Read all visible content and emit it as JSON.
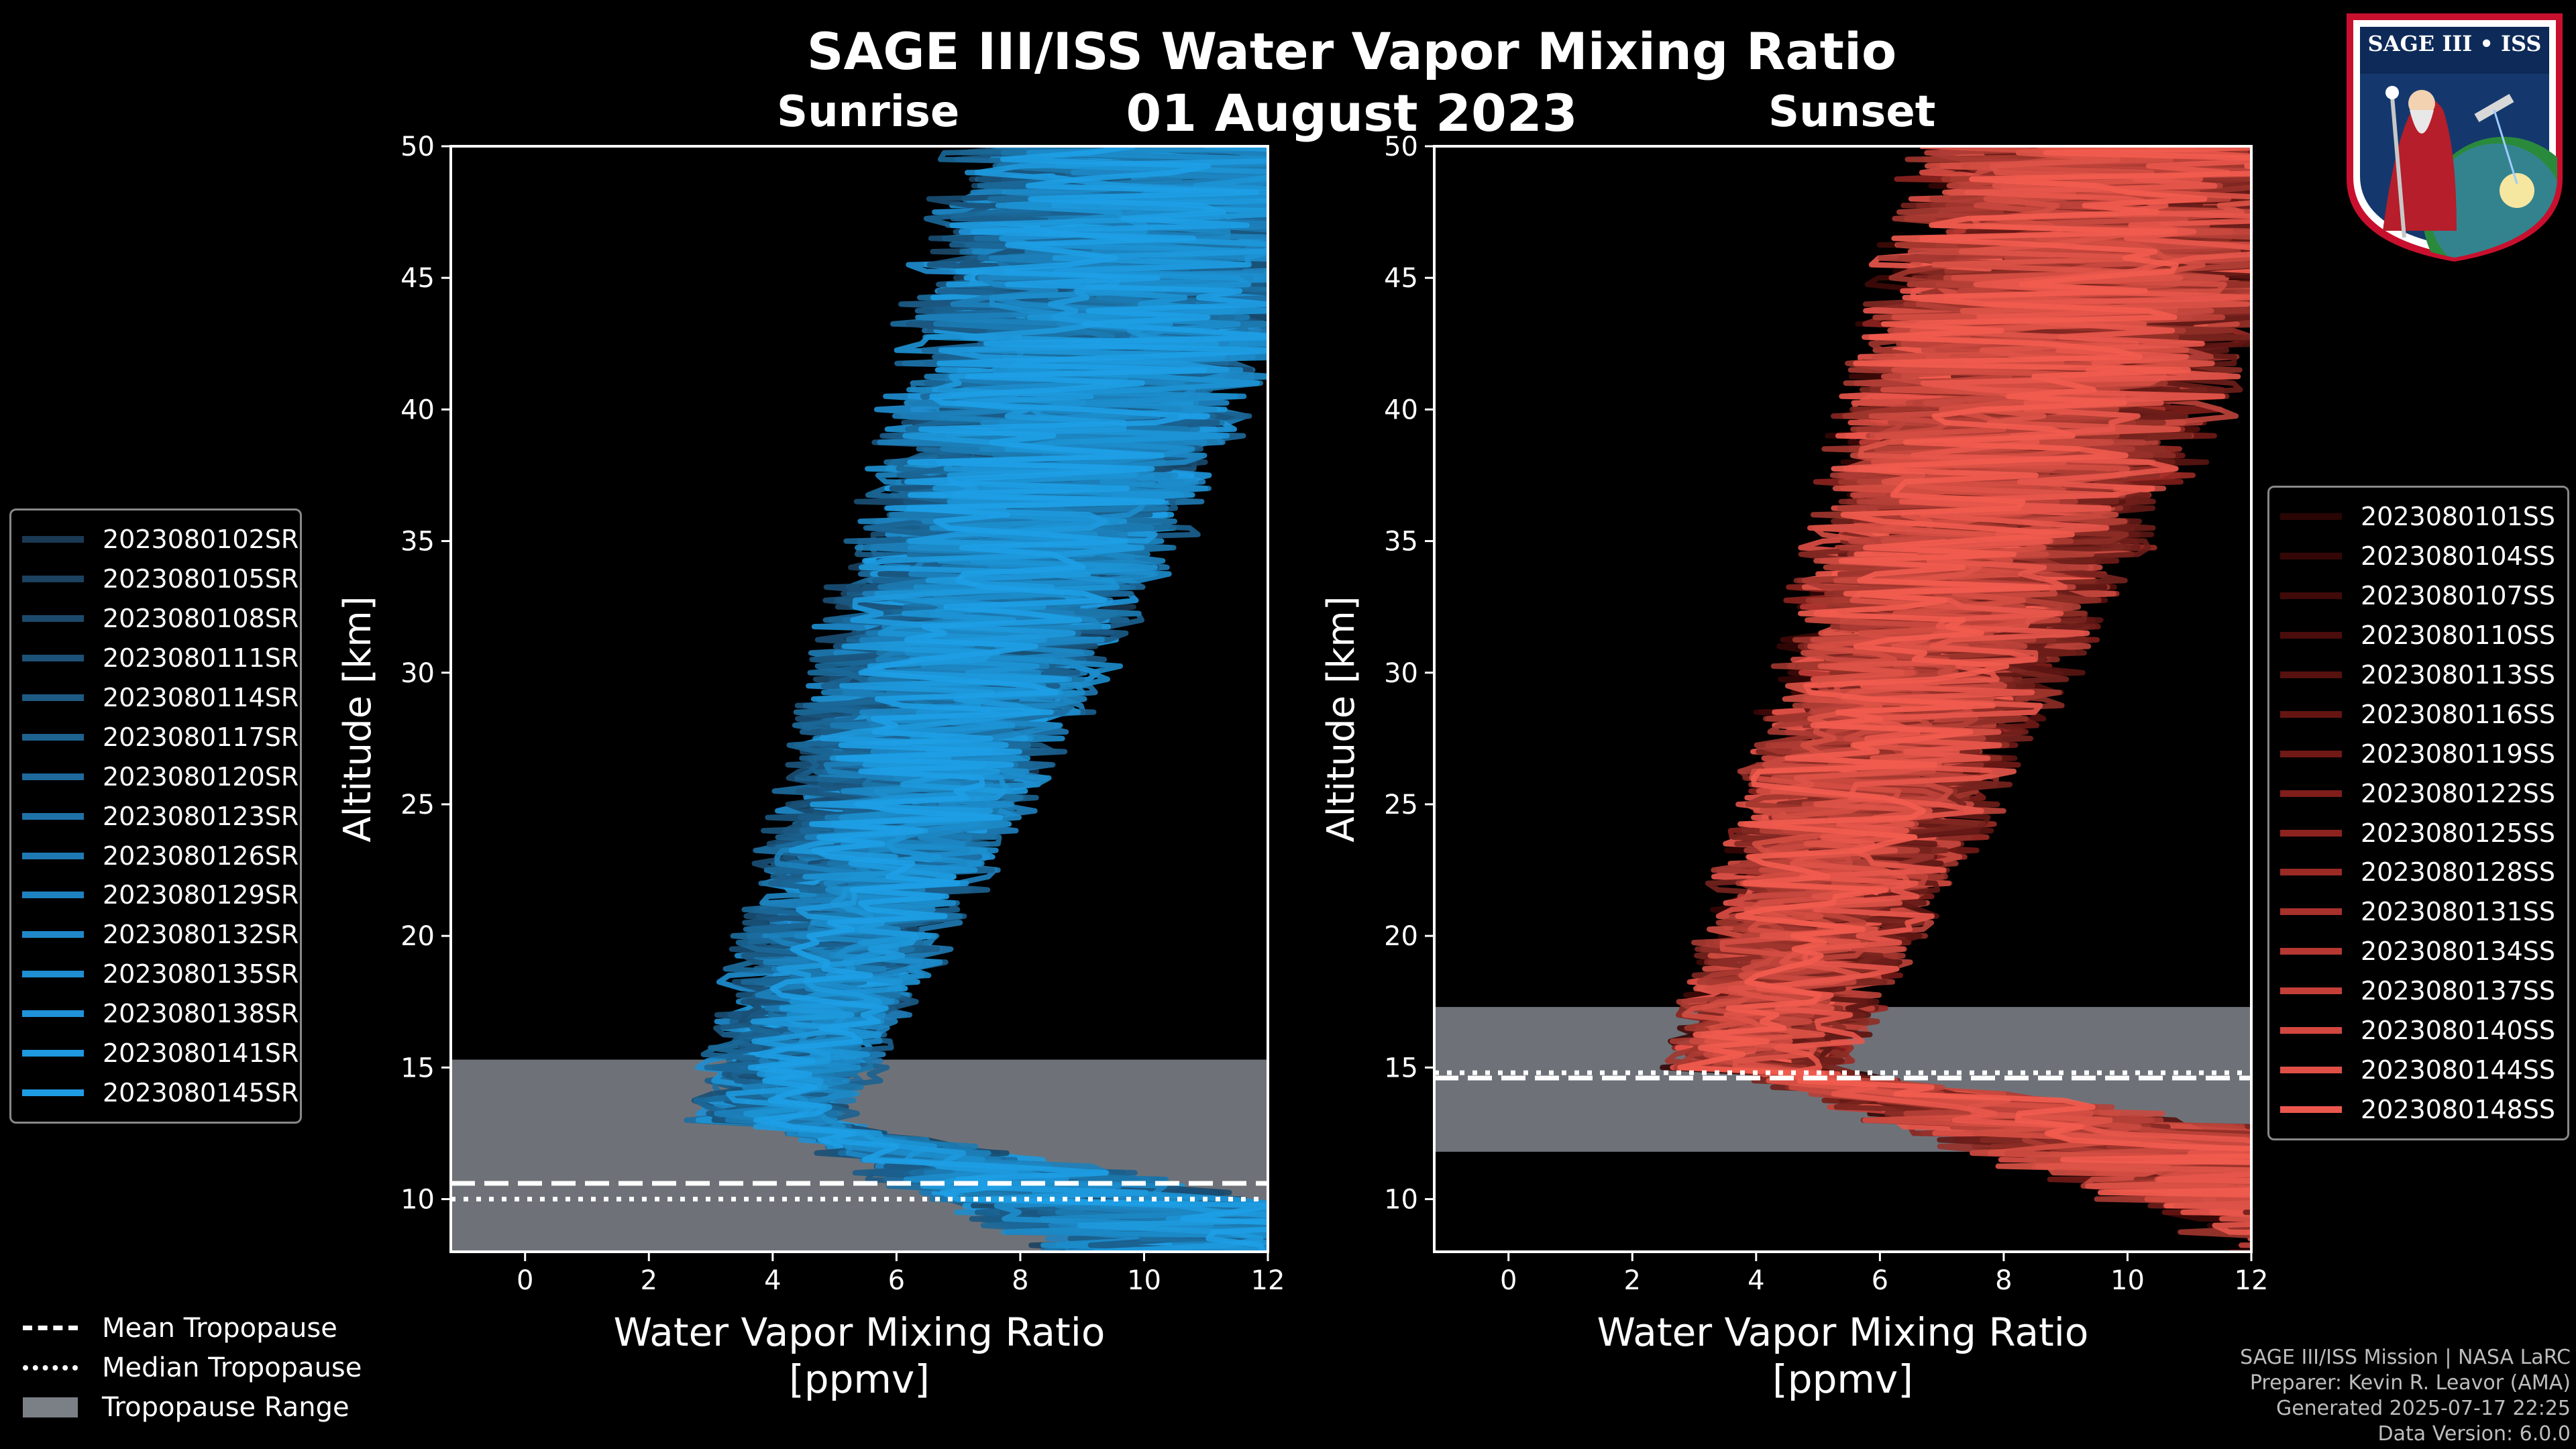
{
  "header": {
    "title": "SAGE III/ISS Water Vapor Mixing Ratio",
    "date": "01 August 2023",
    "panel_left": "Sunrise",
    "panel_right": "Sunset"
  },
  "logo": {
    "text": "SAGE III • ISS"
  },
  "chart_data": [
    {
      "type": "line",
      "title": "Sunrise",
      "xlabel": "Water Vapor Mixing Ratio\n[ppmv]",
      "xlabel_lines": [
        "Water Vapor Mixing Ratio",
        "[ppmv]"
      ],
      "ylabel": "Altitude [km]",
      "xlim": [
        -1.2,
        12
      ],
      "ylim": [
        8,
        50
      ],
      "xticks": [
        0,
        2,
        4,
        6,
        8,
        10,
        12
      ],
      "yticks": [
        10,
        15,
        20,
        25,
        30,
        35,
        40,
        45,
        50
      ],
      "tropopause": {
        "mean": 10.6,
        "median": 10.0,
        "range": [
          8,
          15.3
        ]
      },
      "profile_style": {
        "fade_altitude": 13,
        "color_dark": "#1a4a6e",
        "color_light": "#1e9fe6"
      },
      "series": [
        {
          "name": "2023080102SR",
          "color": "#1a3a54"
        },
        {
          "name": "2023080105SR",
          "color": "#1b4260"
        },
        {
          "name": "2023080108SR",
          "color": "#1c4a6c"
        },
        {
          "name": "2023080111SR",
          "color": "#1d5278"
        },
        {
          "name": "2023080114SR",
          "color": "#1d5a84"
        },
        {
          "name": "2023080117SR",
          "color": "#1e6290"
        },
        {
          "name": "2023080120SR",
          "color": "#1e6a9c"
        },
        {
          "name": "2023080123SR",
          "color": "#1f72a8"
        },
        {
          "name": "2023080126SR",
          "color": "#1f7ab4"
        },
        {
          "name": "2023080129SR",
          "color": "#1f82c0"
        },
        {
          "name": "2023080132SR",
          "color": "#1f88c9"
        },
        {
          "name": "2023080135SR",
          "color": "#1f8ed2"
        },
        {
          "name": "2023080138SR",
          "color": "#1f93d9"
        },
        {
          "name": "2023080141SR",
          "color": "#1e98df"
        },
        {
          "name": "2023080145SR",
          "color": "#1e9ce4"
        }
      ]
    },
    {
      "type": "line",
      "title": "Sunset",
      "xlabel": "Water Vapor Mixing Ratio\n[ppmv]",
      "xlabel_lines": [
        "Water Vapor Mixing Ratio",
        "[ppmv]"
      ],
      "ylabel": "Altitude [km]",
      "xlim": [
        -1.2,
        12
      ],
      "ylim": [
        8,
        50
      ],
      "xticks": [
        0,
        2,
        4,
        6,
        8,
        10,
        12
      ],
      "yticks": [
        10,
        15,
        20,
        25,
        30,
        35,
        40,
        45,
        50
      ],
      "tropopause": {
        "mean": 14.6,
        "median": 14.8,
        "range": [
          11.8,
          17.3
        ]
      },
      "profile_style": {
        "fade_altitude": 15,
        "color_dark": "#5a1512",
        "color_light": "#f25c4f"
      },
      "series": [
        {
          "name": "2023080101SS",
          "color": "#2a0504"
        },
        {
          "name": "2023080104SS",
          "color": "#340706"
        },
        {
          "name": "2023080107SS",
          "color": "#3f0a08"
        },
        {
          "name": "2023080110SS",
          "color": "#4b0d0b"
        },
        {
          "name": "2023080113SS",
          "color": "#57110e"
        },
        {
          "name": "2023080116SS",
          "color": "#641512"
        },
        {
          "name": "2023080119SS",
          "color": "#711916"
        },
        {
          "name": "2023080122SS",
          "color": "#7f1e1a"
        },
        {
          "name": "2023080125SS",
          "color": "#8d231f"
        },
        {
          "name": "2023080128SS",
          "color": "#9b2a25"
        },
        {
          "name": "2023080131SS",
          "color": "#a9312b"
        },
        {
          "name": "2023080134SS",
          "color": "#b73832"
        },
        {
          "name": "2023080137SS",
          "color": "#c53f38"
        },
        {
          "name": "2023080140SS",
          "color": "#d2473f"
        },
        {
          "name": "2023080144SS",
          "color": "#df4f46"
        },
        {
          "name": "2023080148SS",
          "color": "#ec574d"
        }
      ]
    }
  ],
  "tropopause_legend": {
    "mean_label": "Mean Tropopause",
    "median_label": "Median Tropopause",
    "range_label": "Tropopause Range"
  },
  "credits": {
    "line1": "SAGE III/ISS Mission | NASA LaRC",
    "line2": "Preparer: Kevin R. Leavor (AMA)",
    "line3": "Generated 2025-07-17 22:25",
    "line4": "Data Version: 6.0.0"
  }
}
